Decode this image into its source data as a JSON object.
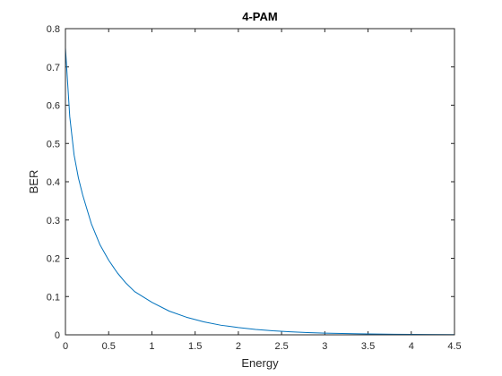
{
  "chart_data": {
    "type": "line",
    "title": "4-PAM",
    "xlabel": "Energy",
    "ylabel": "BER",
    "xlim": [
      0,
      4.5
    ],
    "ylim": [
      0,
      0.8
    ],
    "xticks": [
      0,
      0.5,
      1,
      1.5,
      2,
      2.5,
      3,
      3.5,
      4,
      4.5
    ],
    "yticks": [
      0,
      0.1,
      0.2,
      0.3,
      0.4,
      0.5,
      0.6,
      0.7,
      0.8
    ],
    "xtick_labels": [
      "0",
      "0.5",
      "1",
      "1.5",
      "2",
      "2.5",
      "3",
      "3.5",
      "4",
      "4.5"
    ],
    "ytick_labels": [
      "0",
      "0.1",
      "0.2",
      "0.3",
      "0.4",
      "0.5",
      "0.6",
      "0.7",
      "0.8"
    ],
    "grid": false,
    "series": [
      {
        "color": "#0072bd",
        "x": [
          0,
          0.05,
          0.1,
          0.15,
          0.2,
          0.3,
          0.4,
          0.5,
          0.6,
          0.7,
          0.8,
          1.0,
          1.2,
          1.4,
          1.6,
          1.8,
          2.0,
          2.2,
          2.4,
          2.6,
          2.8,
          3.0,
          3.2,
          3.4,
          3.6,
          3.8,
          4.0,
          4.2,
          4.5
        ],
        "y": [
          0.75,
          0.57,
          0.47,
          0.41,
          0.365,
          0.29,
          0.235,
          0.195,
          0.162,
          0.135,
          0.113,
          0.085,
          0.062,
          0.046,
          0.034,
          0.025,
          0.019,
          0.014,
          0.0105,
          0.008,
          0.006,
          0.0045,
          0.0034,
          0.0026,
          0.002,
          0.0015,
          0.0011,
          0.0008,
          0.0005
        ]
      }
    ]
  }
}
